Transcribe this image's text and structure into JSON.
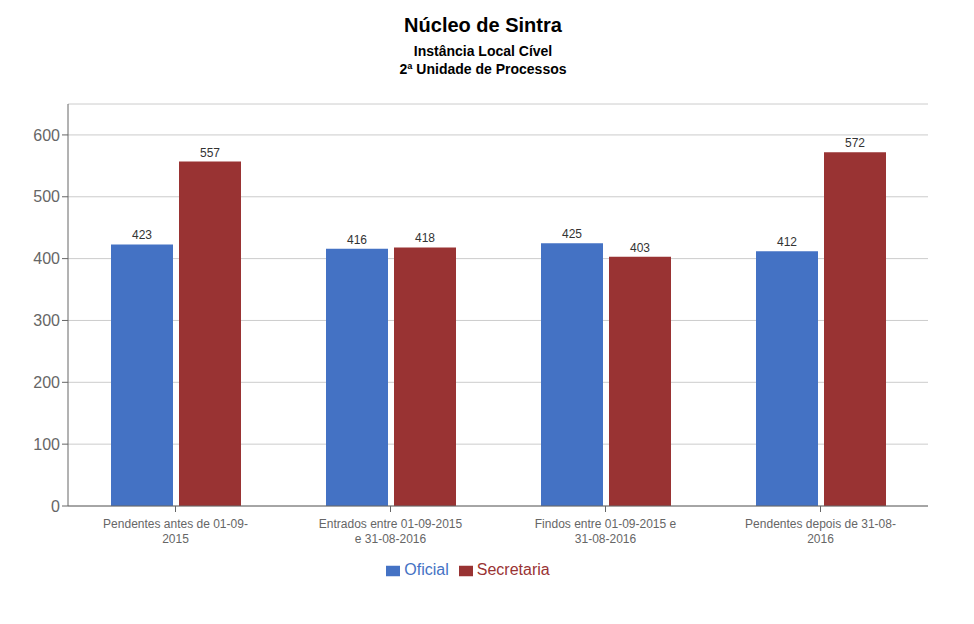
{
  "chart_data": {
    "type": "bar",
    "title": "Núcleo de Sintra",
    "subtitle": [
      "Instância Local Cível",
      "2ª Unidade de Processos"
    ],
    "categories": [
      "Pendentes antes de 01-09-\n2015",
      "Entrados entre 01-09-2015\ne 31-08-2016",
      "Findos entre 01-09-2015 e\n31-08-2016",
      "Pendentes depois de 31-08-\n2016"
    ],
    "series": [
      {
        "name": "Oficial",
        "color": "#4472C4",
        "values": [
          423,
          416,
          425,
          412
        ]
      },
      {
        "name": "Secretaria",
        "color": "#993333",
        "values": [
          557,
          418,
          403,
          572
        ]
      }
    ],
    "ylim": [
      0,
      650
    ],
    "yticks": [
      0,
      100,
      200,
      300,
      400,
      500,
      600
    ],
    "grid": true,
    "legend": "bottom",
    "data_labels": true
  }
}
